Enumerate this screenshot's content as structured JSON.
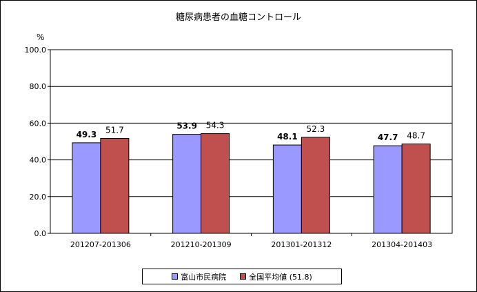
{
  "chart_data": {
    "type": "bar",
    "title": "糖尿病患者の血糖コントロール",
    "ylabel": "%",
    "xlabel": "",
    "ylim": [
      0,
      100
    ],
    "yticks": [
      "0.0",
      "20.0",
      "40.0",
      "60.0",
      "80.0",
      "100.0"
    ],
    "categories": [
      "201207-201306",
      "201210-201309",
      "201301-201312",
      "201304-201403"
    ],
    "series": [
      {
        "name": "富山市民病院",
        "values": [
          49.3,
          53.9,
          48.1,
          47.7
        ],
        "color": "#9999ff",
        "labels": [
          "49.3",
          "53.9",
          "48.1",
          "47.7"
        ]
      },
      {
        "name": "全国平均値 (51.8)",
        "values": [
          51.7,
          54.3,
          52.3,
          48.7
        ],
        "color": "#c0504d",
        "labels": [
          "51.7",
          "54.3",
          "52.3",
          "48.7"
        ]
      }
    ],
    "grid": true,
    "legend": "bottom"
  }
}
